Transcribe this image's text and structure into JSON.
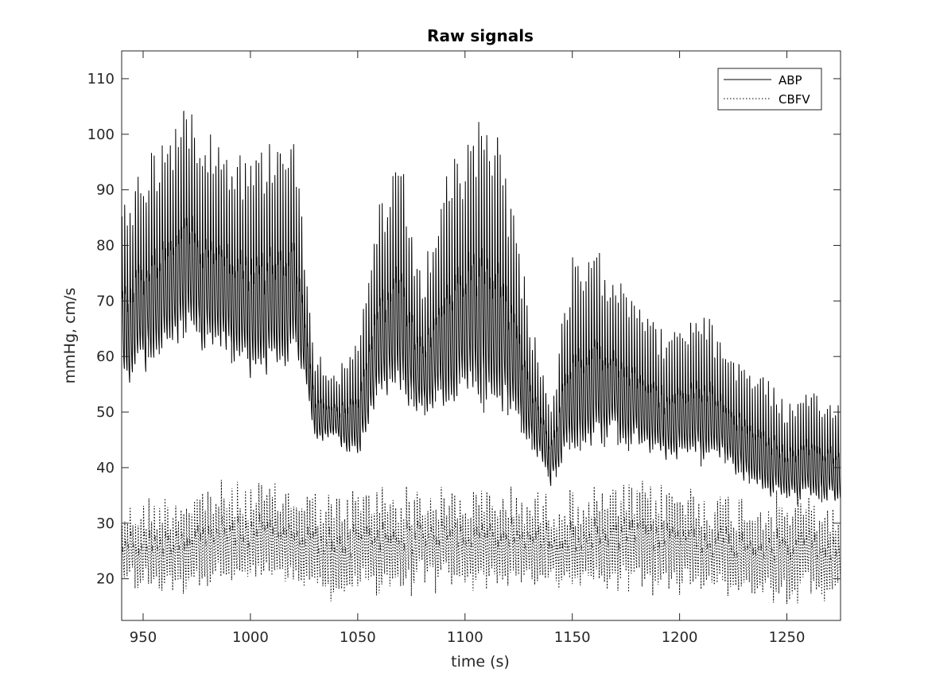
{
  "chart_data": {
    "type": "line",
    "title": "Raw signals",
    "xlabel": "time (s)",
    "ylabel": "mmHg, cm/s",
    "xlim": [
      940,
      1275
    ],
    "ylim": [
      12.5,
      115
    ],
    "xticks": [
      950,
      1000,
      1050,
      1100,
      1150,
      1200,
      1250
    ],
    "xtick_labels": [
      "950",
      "1000",
      "1050",
      "1100",
      "1150",
      "1200",
      "1250"
    ],
    "yticks": [
      20,
      30,
      40,
      50,
      60,
      70,
      80,
      90,
      100,
      110
    ],
    "ytick_labels": [
      "20",
      "30",
      "40",
      "50",
      "60",
      "70",
      "80",
      "90",
      "100",
      "110"
    ],
    "grid": false,
    "legend_position": "top-right",
    "beat_period_s": 1.25,
    "series": [
      {
        "name": "ABP",
        "style": "solid",
        "color": "#000000",
        "envelope_x": [
          940,
          950,
          960,
          970,
          980,
          990,
          1000,
          1010,
          1020,
          1025,
          1030,
          1040,
          1050,
          1060,
          1070,
          1080,
          1090,
          1100,
          1110,
          1115,
          1120,
          1130,
          1140,
          1145,
          1150,
          1160,
          1170,
          1180,
          1190,
          1200,
          1210,
          1220,
          1230,
          1240,
          1250,
          1260,
          1270,
          1275
        ],
        "upper": [
          88,
          97,
          101,
          108,
          104,
          100,
          98,
          101,
          106,
          82,
          62,
          58,
          63,
          90,
          96,
          74,
          94,
          99,
          107,
          105,
          94,
          70,
          52,
          66,
          78,
          80,
          78,
          74,
          66,
          66,
          70,
          64,
          60,
          58,
          52,
          54,
          53,
          52
        ],
        "lower": [
          52,
          55,
          59,
          60,
          59,
          57,
          54,
          55,
          56,
          56,
          44,
          44,
          40,
          51,
          50,
          48,
          49,
          51,
          48,
          48,
          47,
          43,
          36,
          39,
          41,
          42,
          43,
          42,
          40,
          40,
          40,
          40,
          36,
          34,
          33,
          33,
          33,
          33
        ]
      },
      {
        "name": "CBFV",
        "style": "dotted",
        "color": "#000000",
        "envelope_x": [
          940,
          960,
          980,
          1000,
          1020,
          1040,
          1060,
          1080,
          1100,
          1120,
          1140,
          1160,
          1180,
          1200,
          1220,
          1240,
          1260,
          1275
        ],
        "upper": [
          34,
          36,
          38,
          38,
          38,
          36,
          38,
          37,
          37,
          37,
          36,
          37,
          38,
          38,
          36,
          36,
          36,
          34
        ],
        "lower": [
          17,
          16,
          17,
          17,
          17,
          14,
          16,
          17,
          17,
          17,
          17,
          17,
          17,
          16,
          16,
          15,
          15,
          15
        ]
      }
    ]
  }
}
